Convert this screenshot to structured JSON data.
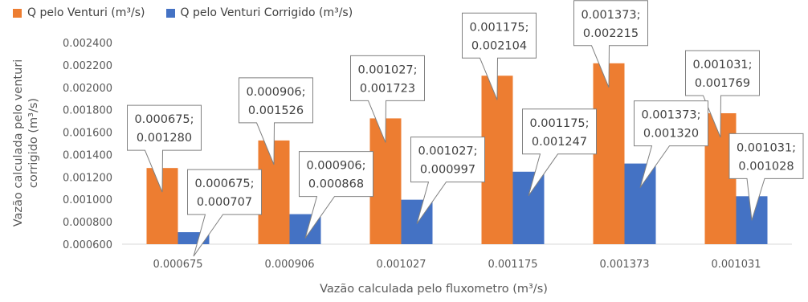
{
  "chart_data": {
    "type": "bar",
    "categories": [
      "0.000675",
      "0.000906",
      "0.001027",
      "0.001175",
      "0.001373",
      "0.001031"
    ],
    "series": [
      {
        "name": "Q pelo Venturi (m³/s)",
        "color": "#ED7D31",
        "values": [
          0.00128,
          0.001526,
          0.001723,
          0.002104,
          0.002215,
          0.001769
        ],
        "labels": [
          [
            "0.000675;",
            "0.001280"
          ],
          [
            "0.000906;",
            "0.001526"
          ],
          [
            "0.001027;",
            "0.001723"
          ],
          [
            "0.001175;",
            "0.002104"
          ],
          [
            "0.001373;",
            "0.002215"
          ],
          [
            "0.001031;",
            "0.001769"
          ]
        ]
      },
      {
        "name": "Q pelo Venturi Corrigido (m³/s)",
        "color": "#4472C4",
        "values": [
          0.000707,
          0.000868,
          0.000997,
          0.001247,
          0.00132,
          0.001028
        ],
        "labels": [
          [
            "0.000675;",
            "0.000707"
          ],
          [
            "0.000906;",
            "0.000868"
          ],
          [
            "0.001027;",
            "0.000997"
          ],
          [
            "0.001175;",
            "0.001247"
          ],
          [
            "0.001373;",
            "0.001320"
          ],
          [
            "0.001031;",
            "0.001028"
          ]
        ]
      }
    ],
    "xlabel": "Vazão calculada pelo fluxometro (m³/s)",
    "ylabel": [
      "Vazão calculada pelo venturi",
      "corrigido (m³/s)"
    ],
    "ylim": [
      0.0006,
      0.0024
    ],
    "yticks": [
      "0.000600",
      "0.000800",
      "0.001000",
      "0.001200",
      "0.001400",
      "0.001600",
      "0.001800",
      "0.002000",
      "0.002200",
      "0.002400"
    ],
    "grid": false,
    "legend": "top-left"
  }
}
